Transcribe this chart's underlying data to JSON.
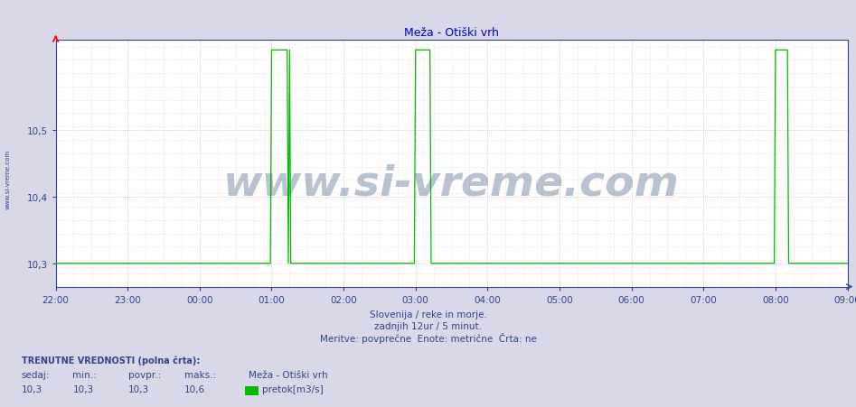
{
  "title": "Meža - Otiški vrh",
  "line_color": "#00bb00",
  "background_color": "#d8d8e8",
  "plot_bg_color": "#ffffff",
  "ymin": 10.265,
  "ymax": 10.635,
  "yticks": [
    10.3,
    10.4,
    10.5
  ],
  "xmin": 0,
  "xmax": 660,
  "xtick_labels": [
    "22:00",
    "23:00",
    "00:00",
    "01:00",
    "02:00",
    "03:00",
    "04:00",
    "05:00",
    "06:00",
    "07:00",
    "08:00",
    "09:00"
  ],
  "title_color": "#0000cc",
  "title_fontsize": 9,
  "watermark_text": "www.si-vreme.com",
  "watermark_color": "#1a3a6a",
  "watermark_alpha": 0.3,
  "watermark_fontsize": 34,
  "sidebar_text": "www.si-vreme.com",
  "bottom_text1": "Slovenija / reke in morje.",
  "bottom_text2": "zadnjih 12ur / 5 minut.",
  "bottom_text3": "Meritve: povprečne  Enote: metrične  Črta: ne",
  "footer_label1": "TRENUTNE VREDNOSTI (polna črta):",
  "footer_col1": "sedaj:",
  "footer_col2": "min.:",
  "footer_col3": "povpr.:",
  "footer_col4": "maks.:",
  "footer_station": "Meža - Otiški vrh",
  "footer_val1": "10,3",
  "footer_val2": "10,3",
  "footer_val3": "10,3",
  "footer_val4": "10,6",
  "footer_legend": "pretok[m3/s]",
  "legend_color": "#00bb00",
  "low_value": 10.3,
  "high_value": 10.62,
  "spike1_up": 180,
  "spike1_top_start": 181,
  "spike1_top_end": 194,
  "spike1_down": 195,
  "spike1_low": 197,
  "spike2_up": 300,
  "spike2_top_start": 301,
  "spike2_top_end": 313,
  "spike2_down": 314,
  "spike2_low": 316,
  "spike3_up": 600,
  "spike3_top_start": 601,
  "spike3_top_end": 611,
  "spike3_down": 612,
  "spike3_low": 614
}
